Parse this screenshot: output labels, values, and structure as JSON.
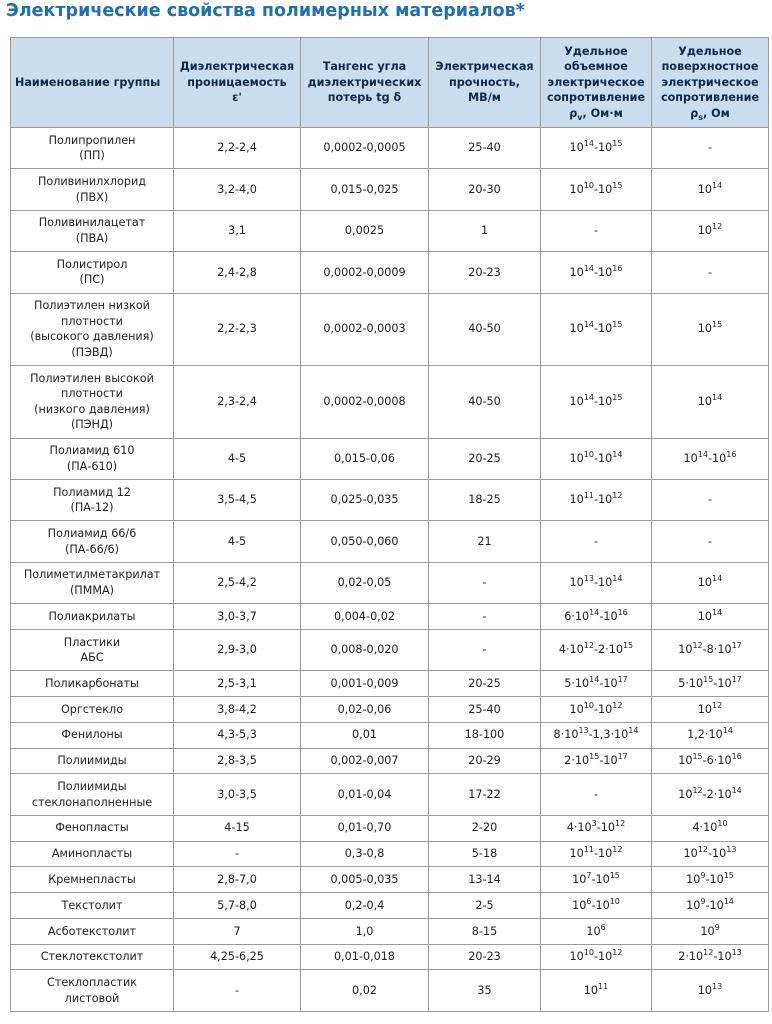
{
  "header": {
    "title": "Электрические свойства полимерных материалов*"
  },
  "table": {
    "columns": [
      "Наименование группы",
      "Диэлектрическая\nпроницаемость\nε'",
      "Тангенс угла\nдиэлектрических\nпотерь tg δ",
      "Электрическая\nпрочность,\nМВ/м",
      [
        "Удельное\nобъемное\nэлектрическое\nсопротивление\nρ",
        "v",
        ", Ом·м"
      ],
      [
        "Удельное\nповерхностное\nэлектрическое\nсопротивление\nρ",
        "s",
        ", Ом"
      ]
    ],
    "rows": [
      [
        "Полипропилен\n(ПП)",
        "2,2-2,4",
        "0,0002-0,0005",
        "25-40",
        [
          "10",
          "14",
          "-10",
          "15"
        ],
        "-"
      ],
      [
        "Поливинилхлорид\n(ПВХ)",
        "3,2-4,0",
        "0,015-0,025",
        "20-30",
        [
          "10",
          "10",
          "-10",
          "15"
        ],
        [
          "10",
          "14"
        ]
      ],
      [
        "Поливинилацетат\n(ПВА)",
        "3,1",
        "0,0025",
        "1",
        "-",
        [
          "10",
          "12"
        ]
      ],
      [
        "Полистирол\n(ПС)",
        "2,4-2,8",
        "0,0002-0,0009",
        "20-23",
        [
          "10",
          "14",
          "-10",
          "16"
        ],
        "-"
      ],
      [
        "Полиэтилен низкой\nплотности\n(высокого давления)\n(ПЭВД)",
        "2,2-2,3",
        "0,0002-0,0003",
        "40-50",
        [
          "10",
          "14",
          "-10",
          "15"
        ],
        [
          "10",
          "15"
        ]
      ],
      [
        "Полиэтилен высокой\nплотности\n(низкого давления)\n(ПЭНД)",
        "2,3-2,4",
        "0,0002-0,0008",
        "40-50",
        [
          "10",
          "14",
          "-10",
          "15"
        ],
        [
          "10",
          "14"
        ]
      ],
      [
        "Полиамид 610\n(ПА-610)",
        "4-5",
        "0,015-0,06",
        "20-25",
        [
          "10",
          "10",
          "-10",
          "14"
        ],
        [
          "10",
          "14",
          "-10",
          "16"
        ]
      ],
      [
        "Полиамид 12\n(ПА-12)",
        "3,5-4,5",
        "0,025-0,035",
        "18-25",
        [
          "10",
          "11",
          "-10",
          "12"
        ],
        "-"
      ],
      [
        "Полиамид 66/6\n(ПА-66/6)",
        "4-5",
        "0,050-0,060",
        "21",
        "-",
        "-"
      ],
      [
        "Полиметилметакрилат\n(ПММА)",
        "2,5-4,2",
        "0,02-0,05",
        "-",
        [
          "10",
          "13",
          "-10",
          "14"
        ],
        [
          "10",
          "14"
        ]
      ],
      [
        "Полиакрилаты",
        "3,0-3,7",
        "0,004-0,02",
        "-",
        [
          "6·10",
          "14",
          "-10",
          "16"
        ],
        [
          "10",
          "14"
        ]
      ],
      [
        "Пластики\nАБС",
        "2,9-3,0",
        "0,008-0,020",
        "-",
        [
          "4·10",
          "12",
          "-2·10",
          "15"
        ],
        [
          "10",
          "12",
          "-8·10",
          "17"
        ]
      ],
      [
        "Поликарбонаты",
        "2,5-3,1",
        "0,001-0,009",
        "20-25",
        [
          "5·10",
          "14",
          "-10",
          "17"
        ],
        [
          "5·10",
          "15",
          "-10",
          "17"
        ]
      ],
      [
        "Оргстекло",
        "3,8-4,2",
        "0,02-0,06",
        "25-40",
        [
          "10",
          "10",
          "-10",
          "12"
        ],
        [
          "10",
          "12"
        ]
      ],
      [
        "Фенилоны",
        "4,3-5,3",
        "0,01",
        "18-100",
        [
          "8·10",
          "13",
          "-1,3·10",
          "14"
        ],
        [
          "1,2·10",
          "14"
        ]
      ],
      [
        "Полиимиды",
        "2,8-3,5",
        "0,002-0,007",
        "20-29",
        [
          "2·10",
          "15",
          "-10",
          "17"
        ],
        [
          "10",
          "15",
          "-6·10",
          "16"
        ]
      ],
      [
        "Полиимиды\nстеклонаполненные",
        "3,0-3,5",
        "0,01-0,04",
        "17-22",
        "-",
        [
          "10",
          "12",
          "-2·10",
          "14"
        ]
      ],
      [
        "Фенопласты",
        "4-15",
        "0,01-0,70",
        "2-20",
        [
          "4·10",
          "3",
          "-10",
          "12"
        ],
        [
          "4·10",
          "10"
        ]
      ],
      [
        "Аминопласты",
        "-",
        "0,3-0,8",
        "5-18",
        [
          "10",
          "11",
          "-10",
          "12"
        ],
        [
          "10",
          "12",
          "-10",
          "13"
        ]
      ],
      [
        "Кремнепласты",
        "2,8-7,0",
        "0,005-0,035",
        "13-14",
        [
          "10",
          "7",
          "-10",
          "15"
        ],
        [
          "10",
          "9",
          "-10",
          "15"
        ]
      ],
      [
        "Текстолит",
        "5,7-8,0",
        "0,2-0,4",
        "2-5",
        [
          "10",
          "6",
          "-10",
          "10"
        ],
        [
          "10",
          "9",
          "-10",
          "14"
        ]
      ],
      [
        "Асботекстолит",
        "7",
        "1,0",
        "8-15",
        [
          "10",
          "6"
        ],
        [
          "10",
          "9"
        ]
      ],
      [
        "Стеклотекстолит",
        "4,25-6,25",
        "0,01-0,018",
        "20-23",
        [
          "10",
          "10",
          "-10",
          "12"
        ],
        [
          "2·10",
          "12",
          "-10",
          "13"
        ]
      ],
      [
        "Стеклопластик\nлистовой",
        "-",
        "0,02",
        "35",
        [
          "10",
          "11"
        ],
        [
          "10",
          "13"
        ]
      ]
    ]
  }
}
